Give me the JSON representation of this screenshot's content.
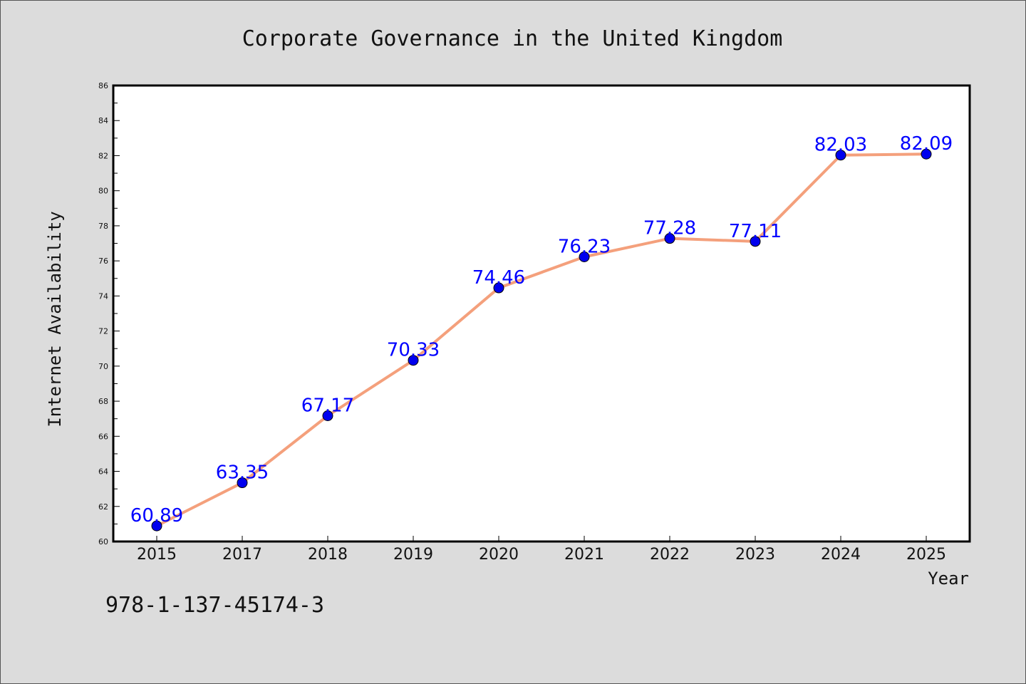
{
  "chart_data": {
    "type": "line",
    "title": "Corporate Governance in the United Kingdom",
    "xlabel": "Year",
    "ylabel": "Internet Availability",
    "categories": [
      "2015",
      "2017",
      "2018",
      "2019",
      "2020",
      "2021",
      "2022",
      "2023",
      "2024",
      "2025"
    ],
    "series": [
      {
        "values": [
          60.89,
          63.35,
          67.17,
          70.33,
          74.46,
          76.23,
          77.28,
          77.11,
          82.03,
          82.09
        ]
      }
    ],
    "data_labels": [
      "60.89",
      "63.35",
      "67.17",
      "70.33",
      "74.46",
      "76.23",
      "77.28",
      "77.11",
      "82.03",
      "82.09"
    ],
    "ylim": [
      60,
      86
    ],
    "yticks": [
      60,
      62,
      64,
      66,
      68,
      70,
      72,
      74,
      76,
      78,
      80,
      82,
      84,
      86
    ],
    "grid": false,
    "colors": {
      "line": "#f4a07c",
      "marker": "#0000ee",
      "label": "#0000ff",
      "background": "#dcdcdc",
      "plot": "#ffffff"
    }
  },
  "footer": {
    "isbn": "978-1-137-45174-3"
  }
}
